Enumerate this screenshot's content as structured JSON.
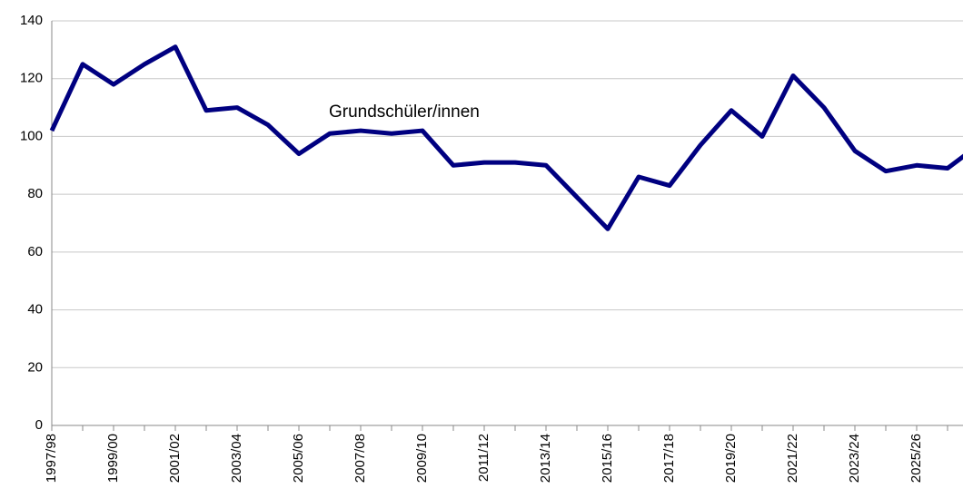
{
  "chart_data": {
    "type": "line",
    "annotation": "Grundschüler/innen",
    "categories": [
      "1997/98",
      null,
      "1999/00",
      null,
      "2001/02",
      null,
      "2003/04",
      null,
      "2005/06",
      null,
      "2007/08",
      null,
      "2009/10",
      null,
      "2011/12",
      null,
      "2013/14",
      null,
      "2015/16",
      null,
      "2017/18",
      null,
      "2019/20",
      null,
      "2021/22",
      null,
      "2023/24",
      null,
      "2025/26",
      null,
      null
    ],
    "series": [
      {
        "name": "Grundschüler/innen",
        "color": "#000080",
        "values": [
          102,
          125,
          118,
          125,
          131,
          109,
          110,
          104,
          94,
          101,
          102,
          101,
          102,
          90,
          91,
          91,
          90,
          79,
          68,
          86,
          83,
          97,
          109,
          100,
          121,
          110,
          95,
          88,
          90,
          89,
          97
        ]
      }
    ],
    "ylim": [
      0,
      140
    ],
    "yticks": [
      0,
      20,
      40,
      60,
      80,
      100,
      120,
      140
    ],
    "grid": true
  }
}
